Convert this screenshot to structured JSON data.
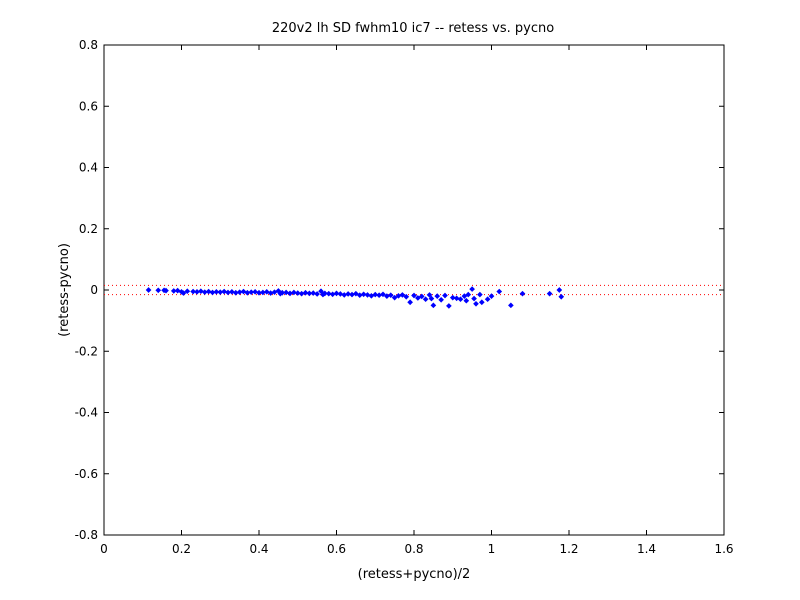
{
  "chart_data": {
    "type": "scatter",
    "title": "220v2 lh SD fwhm10 ic7 -- retess vs. pycno",
    "xlabel": "(retess+pycno)/2",
    "ylabel": "(retess-pycno)",
    "xlim": [
      0,
      1.6
    ],
    "ylim": [
      -0.8,
      0.8
    ],
    "xticks": [
      0,
      0.2,
      0.4,
      0.6,
      0.8,
      1,
      1.2,
      1.4,
      1.6
    ],
    "xtick_labels": [
      "0",
      "0.2",
      "0.4",
      "0.6",
      "0.8",
      "1",
      "1.2",
      "1.4",
      "1.6"
    ],
    "yticks": [
      -0.8,
      -0.6,
      -0.4,
      -0.2,
      0,
      0.2,
      0.4,
      0.6,
      0.8
    ],
    "ytick_labels": [
      "-0.8",
      "-0.6",
      "-0.4",
      "-0.2",
      "0",
      "0.2",
      "0.4",
      "0.6",
      "0.8"
    ],
    "grid": false,
    "colors": {
      "points": "#0000ff",
      "reference_lines": "#ff0000"
    },
    "reference_lines": [
      {
        "y": 0.015,
        "style": "dotted",
        "color": "#ff0000"
      },
      {
        "y": -0.015,
        "style": "dotted",
        "color": "#ff0000"
      }
    ],
    "series": [
      {
        "points": [
          [
            0.115,
            0.0
          ],
          [
            0.14,
            -0.001
          ],
          [
            0.155,
            -0.001
          ],
          [
            0.16,
            -0.002
          ],
          [
            0.18,
            -0.003
          ],
          [
            0.19,
            -0.002
          ],
          [
            0.2,
            -0.006
          ],
          [
            0.205,
            -0.01
          ],
          [
            0.215,
            -0.004
          ],
          [
            0.23,
            -0.005
          ],
          [
            0.24,
            -0.006
          ],
          [
            0.25,
            -0.004
          ],
          [
            0.26,
            -0.007
          ],
          [
            0.27,
            -0.005
          ],
          [
            0.28,
            -0.008
          ],
          [
            0.29,
            -0.006
          ],
          [
            0.3,
            -0.007
          ],
          [
            0.31,
            -0.005
          ],
          [
            0.32,
            -0.008
          ],
          [
            0.33,
            -0.006
          ],
          [
            0.34,
            -0.009
          ],
          [
            0.35,
            -0.007
          ],
          [
            0.36,
            -0.005
          ],
          [
            0.37,
            -0.009
          ],
          [
            0.38,
            -0.007
          ],
          [
            0.39,
            -0.006
          ],
          [
            0.4,
            -0.009
          ],
          [
            0.41,
            -0.008
          ],
          [
            0.42,
            -0.006
          ],
          [
            0.43,
            -0.01
          ],
          [
            0.44,
            -0.007
          ],
          [
            0.45,
            -0.003
          ],
          [
            0.455,
            -0.012
          ],
          [
            0.46,
            -0.009
          ],
          [
            0.47,
            -0.008
          ],
          [
            0.48,
            -0.011
          ],
          [
            0.49,
            -0.008
          ],
          [
            0.5,
            -0.01
          ],
          [
            0.51,
            -0.012
          ],
          [
            0.52,
            -0.009
          ],
          [
            0.53,
            -0.011
          ],
          [
            0.54,
            -0.01
          ],
          [
            0.55,
            -0.013
          ],
          [
            0.56,
            -0.004
          ],
          [
            0.565,
            -0.015
          ],
          [
            0.57,
            -0.011
          ],
          [
            0.58,
            -0.012
          ],
          [
            0.59,
            -0.014
          ],
          [
            0.6,
            -0.011
          ],
          [
            0.61,
            -0.013
          ],
          [
            0.62,
            -0.016
          ],
          [
            0.63,
            -0.013
          ],
          [
            0.64,
            -0.015
          ],
          [
            0.65,
            -0.012
          ],
          [
            0.66,
            -0.017
          ],
          [
            0.67,
            -0.014
          ],
          [
            0.68,
            -0.016
          ],
          [
            0.69,
            -0.019
          ],
          [
            0.7,
            -0.015
          ],
          [
            0.71,
            -0.017
          ],
          [
            0.72,
            -0.014
          ],
          [
            0.73,
            -0.02
          ],
          [
            0.74,
            -0.017
          ],
          [
            0.75,
            -0.025
          ],
          [
            0.76,
            -0.019
          ],
          [
            0.77,
            -0.016
          ],
          [
            0.78,
            -0.022
          ],
          [
            0.79,
            -0.04
          ],
          [
            0.8,
            -0.018
          ],
          [
            0.81,
            -0.026
          ],
          [
            0.82,
            -0.021
          ],
          [
            0.83,
            -0.03
          ],
          [
            0.84,
            -0.016
          ],
          [
            0.845,
            -0.028
          ],
          [
            0.85,
            -0.05
          ],
          [
            0.86,
            -0.02
          ],
          [
            0.87,
            -0.032
          ],
          [
            0.88,
            -0.018
          ],
          [
            0.89,
            -0.052
          ],
          [
            0.9,
            -0.025
          ],
          [
            0.91,
            -0.027
          ],
          [
            0.92,
            -0.03
          ],
          [
            0.93,
            -0.02
          ],
          [
            0.935,
            -0.035
          ],
          [
            0.94,
            -0.015
          ],
          [
            0.95,
            0.003
          ],
          [
            0.955,
            -0.028
          ],
          [
            0.96,
            -0.045
          ],
          [
            0.97,
            -0.015
          ],
          [
            0.975,
            -0.04
          ],
          [
            0.99,
            -0.03
          ],
          [
            1.0,
            -0.02
          ],
          [
            1.02,
            -0.005
          ],
          [
            1.05,
            -0.05
          ],
          [
            1.08,
            -0.012
          ],
          [
            1.15,
            -0.012
          ],
          [
            1.175,
            0.0
          ],
          [
            1.18,
            -0.022
          ]
        ]
      }
    ]
  }
}
